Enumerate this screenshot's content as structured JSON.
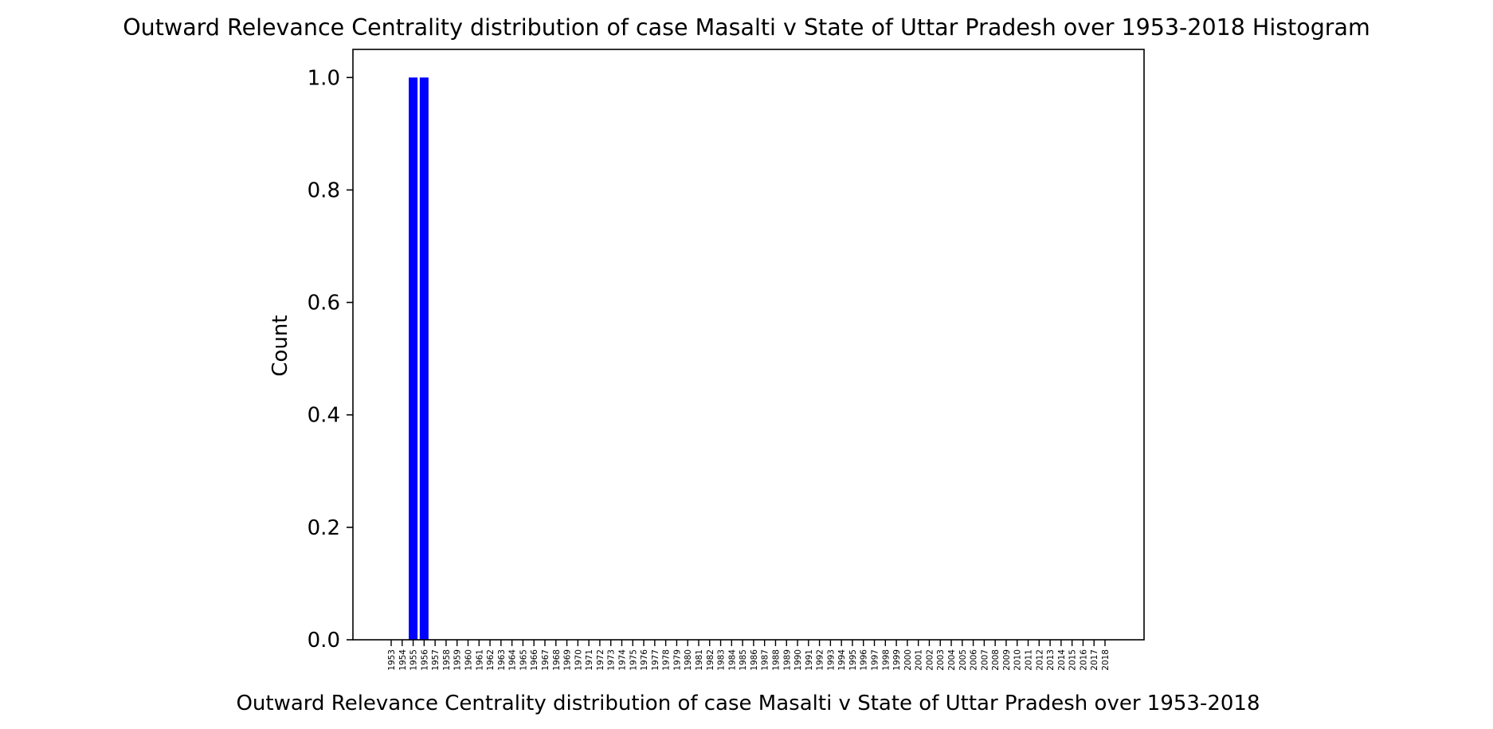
{
  "chart_data": {
    "type": "bar",
    "title": "Outward Relevance Centrality distribution of case Masalti v State of Uttar Pradesh over 1953-2018 Histogram",
    "xlabel": "Outward Relevance Centrality distribution of case Masalti v State of Uttar Pradesh over 1953-2018",
    "ylabel": "Count",
    "ylim": [
      0,
      1.05
    ],
    "yticks": [
      "0.0",
      "0.2",
      "0.4",
      "0.6",
      "0.8",
      "1.0"
    ],
    "grid": false,
    "bar_color": "#0000ff",
    "categories": [
      "1953",
      "1954",
      "1955",
      "1956",
      "1957",
      "1958",
      "1959",
      "1960",
      "1961",
      "1962",
      "1963",
      "1964",
      "1965",
      "1966",
      "1967",
      "1968",
      "1969",
      "1970",
      "1971",
      "1972",
      "1973",
      "1974",
      "1975",
      "1976",
      "1977",
      "1978",
      "1979",
      "1980",
      "1981",
      "1982",
      "1983",
      "1984",
      "1985",
      "1986",
      "1987",
      "1988",
      "1989",
      "1990",
      "1991",
      "1992",
      "1993",
      "1994",
      "1995",
      "1996",
      "1997",
      "1998",
      "1999",
      "2000",
      "2001",
      "2002",
      "2003",
      "2004",
      "2005",
      "2006",
      "2007",
      "2008",
      "2009",
      "2010",
      "2011",
      "2012",
      "2013",
      "2014",
      "2015",
      "2016",
      "2017",
      "2018"
    ],
    "values": [
      0,
      0,
      1,
      1,
      0,
      0,
      0,
      0,
      0,
      0,
      0,
      0,
      0,
      0,
      0,
      0,
      0,
      0,
      0,
      0,
      0,
      0,
      0,
      0,
      0,
      0,
      0,
      0,
      0,
      0,
      0,
      0,
      0,
      0,
      0,
      0,
      0,
      0,
      0,
      0,
      0,
      0,
      0,
      0,
      0,
      0,
      0,
      0,
      0,
      0,
      0,
      0,
      0,
      0,
      0,
      0,
      0,
      0,
      0,
      0,
      0,
      0,
      0,
      0,
      0,
      0
    ]
  }
}
